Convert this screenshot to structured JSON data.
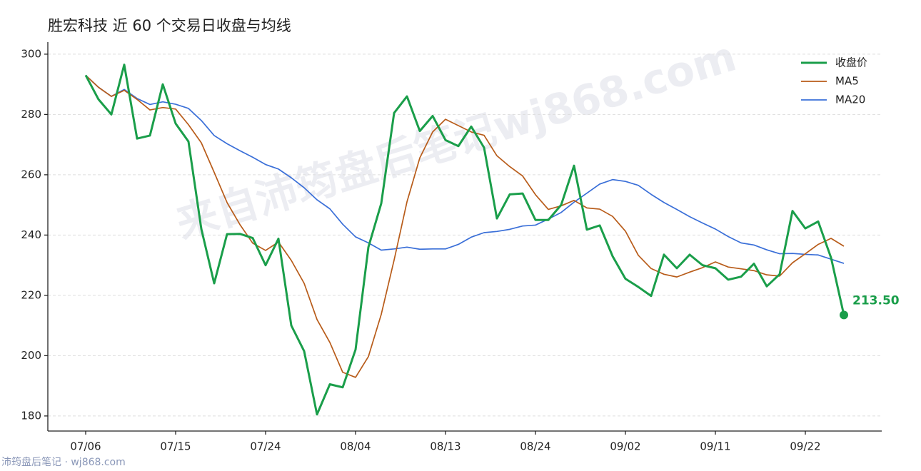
{
  "chart_data": {
    "type": "line",
    "title": "胜宏科技 近 60 个交易日收盘与均线",
    "watermark": "来自沛筠盘后笔记wj868.com",
    "footer": "沛筠盘后笔记 · wj868.com",
    "categories": [
      "07/06",
      null,
      null,
      null,
      null,
      null,
      null,
      "07/15",
      null,
      null,
      null,
      null,
      null,
      null,
      "07/24",
      null,
      null,
      null,
      null,
      null,
      null,
      "08/04",
      null,
      null,
      null,
      null,
      null,
      null,
      "08/13",
      null,
      null,
      null,
      null,
      null,
      null,
      "08/24",
      null,
      null,
      null,
      null,
      null,
      null,
      "09/02",
      null,
      null,
      null,
      null,
      null,
      null,
      "09/11",
      null,
      null,
      null,
      null,
      null,
      null,
      "09/22",
      null,
      null,
      null
    ],
    "series": [
      {
        "name": "收盘价",
        "color": "#1a9e4a",
        "width": 3,
        "values": [
          293,
          285,
          280,
          296.5,
          272,
          273,
          290,
          277,
          271,
          242,
          224,
          240.3,
          240.4,
          239,
          230,
          238.8,
          210,
          201.5,
          180.5,
          190.5,
          189.5,
          202,
          236,
          250.5,
          280.5,
          286,
          274.5,
          279.5,
          271.5,
          269.5,
          276,
          269,
          245.5,
          253.5,
          253.8,
          245,
          245,
          250,
          263,
          241.8,
          243.2,
          233,
          225.5,
          222.8,
          219.8,
          233.5,
          229,
          233.5,
          230,
          229,
          225.2,
          226.2,
          230.5,
          223,
          227,
          248,
          242.2,
          244.5,
          232.5,
          213.5
        ],
        "value_labels": [
          null,
          null,
          null,
          null,
          null,
          null,
          null,
          null,
          null,
          null,
          null,
          null,
          null,
          null,
          null,
          null,
          null,
          null,
          null,
          null,
          null,
          null,
          null,
          null,
          null,
          null,
          null,
          null,
          null,
          null,
          null,
          null,
          null,
          null,
          null,
          null,
          null,
          null,
          null,
          null,
          null,
          null,
          null,
          null,
          null,
          null,
          null,
          null,
          null,
          null,
          null,
          null,
          null,
          null,
          null,
          null,
          null,
          null,
          null,
          "213.50"
        ]
      },
      {
        "name": "MA5",
        "color": "#b85c1a",
        "width": 1.7,
        "values": [
          293,
          289,
          286,
          288,
          285,
          281.5,
          282.3,
          281.8,
          276.6,
          270.6,
          260.8,
          250.8,
          243.5,
          237.3,
          234.9,
          237.7,
          231.6,
          224,
          212,
          204.4,
          194.5,
          192.8,
          199.7,
          213.7,
          231.7,
          251,
          265.6,
          274.2,
          278.4,
          276.3,
          274.2,
          273.1,
          266.3,
          262.7,
          259.6,
          253.4,
          248.5,
          249.7,
          251.5,
          249,
          248.6,
          246.2,
          241.3,
          233.3,
          228.9,
          227,
          226.1,
          227.7,
          229.2,
          231.1,
          229.4,
          228.8,
          228.2,
          226.8,
          226.4,
          230.8,
          233.8,
          236.9,
          238.9,
          236.3
        ]
      },
      {
        "name": "MA20",
        "color": "#3a6fd8",
        "width": 1.7,
        "values": [
          293,
          289,
          286,
          288.3,
          285.3,
          283.3,
          284.2,
          283.4,
          282,
          278,
          273,
          270.3,
          268,
          265.8,
          263.4,
          261.9,
          259,
          255.7,
          251.7,
          248.7,
          243.6,
          239.4,
          237.4,
          235,
          235.4,
          236,
          235.3,
          235.4,
          235.4,
          236.9,
          239.3,
          240.8,
          241.2,
          241.9,
          243,
          243.3,
          245.3,
          247.5,
          250.9,
          253.9,
          256.9,
          258.4,
          257.8,
          256.5,
          253.5,
          250.8,
          248.5,
          246.1,
          244,
          242,
          239.5,
          237.4,
          236.7,
          235.1,
          233.8,
          233.9,
          233.6,
          233.4,
          232,
          230.6
        ]
      }
    ],
    "ylim": [
      175,
      304
    ],
    "yticks": [
      180,
      200,
      220,
      240,
      260,
      280,
      300
    ],
    "grid": true,
    "legend": "upper right"
  }
}
